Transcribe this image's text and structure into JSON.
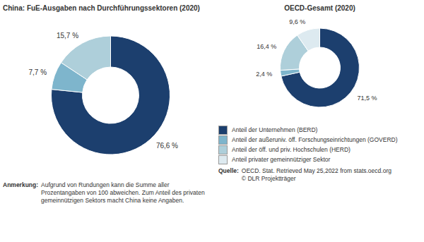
{
  "chart_data": [
    {
      "type": "pie",
      "title": "China: FuE-Ausgaben nach Durchführungssektoren (2020)",
      "categories": [
        "Anteil der Unternehmen (BERD)",
        "Anteil der außeruniv. öff. Forschungseinrichtungen (GOVERD)",
        "Anteil der öff. und priv. Hochschulen (HERD)"
      ],
      "values": [
        76.6,
        7.7,
        15.7
      ],
      "value_labels": [
        "76,6 %",
        "7,7 %",
        "15,7 %"
      ],
      "colors": [
        "#1c3f6e",
        "#7eb5cc",
        "#aecfda"
      ],
      "data_labels": true,
      "annotations": [
        {
          "label": "Anmerkung:",
          "text": "Aufgrund von Rundungen kann die Summe aller\nProzentangaben von 100 abweichen. Zum Anteil des privaten\ngemeinnützigen Sektors macht China keine Angaben."
        }
      ]
    },
    {
      "type": "pie",
      "title": "OECD-Gesamt (2020)",
      "categories": [
        "Anteil der Unternehmen (BERD)",
        "Anteil der außeruniv. öff. Forschungseinrichtungen (GOVERD)",
        "Anteil der öff. und priv. Hochschulen (HERD)",
        "Anteil privater gemeinnütziger Sektor"
      ],
      "values": [
        71.5,
        2.4,
        16.4,
        9.6
      ],
      "value_labels": [
        "71,5 %",
        "2,4 %",
        "16,4 %",
        "9,6 %"
      ],
      "colors": [
        "#1c3f6e",
        "#7eb5cc",
        "#aecfda",
        "#ddeaf0"
      ],
      "data_labels": true,
      "legend": "bottom",
      "annotations": [
        {
          "label": "Quelle:",
          "text": "OECD. Stat. Retrieved May 25,2022 from stats.oecd.org\n© DLR Projektträger"
        }
      ]
    }
  ]
}
